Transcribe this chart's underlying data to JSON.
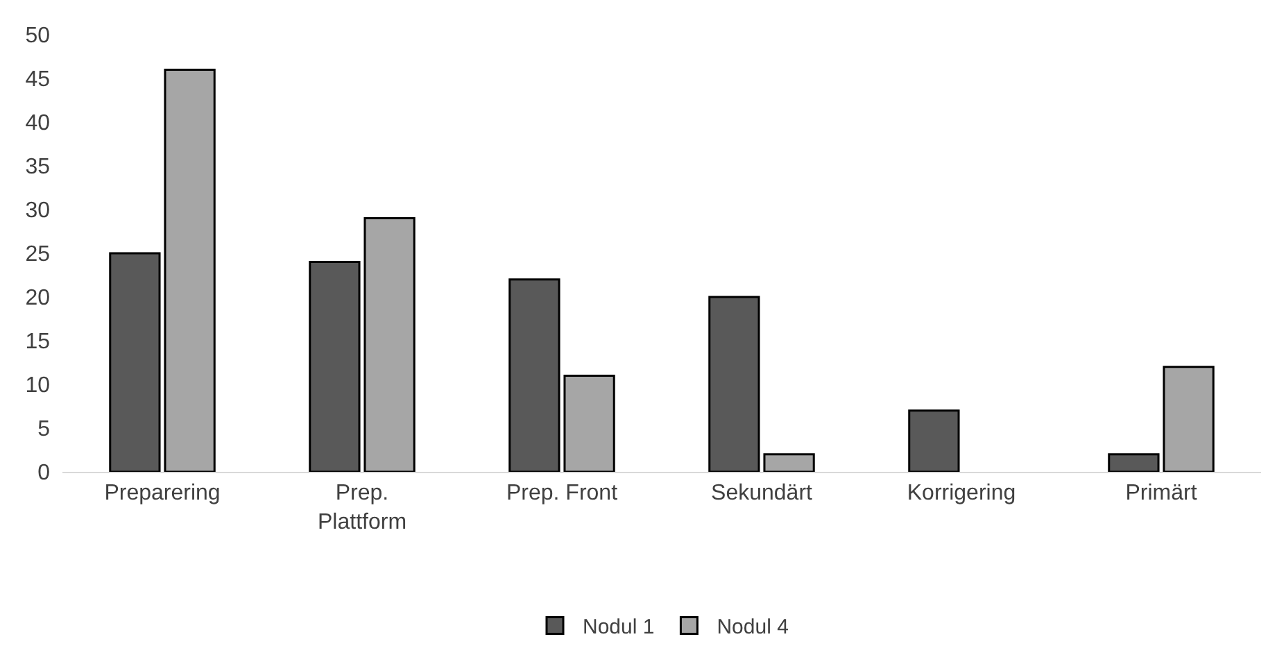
{
  "chart_data": {
    "type": "bar",
    "categories": [
      "Preparering",
      "Prep. Plattform",
      "Prep. Front",
      "Sekundärt",
      "Korrigering",
      "Primärt"
    ],
    "series": [
      {
        "name": "Nodul 1",
        "color": "#595959",
        "values": [
          25,
          24,
          22,
          20,
          7,
          2
        ]
      },
      {
        "name": "Nodul 4",
        "color": "#a6a6a6",
        "values": [
          46,
          29,
          11,
          2,
          null,
          12
        ]
      }
    ],
    "ylim": [
      0,
      50
    ],
    "yticks": [
      0,
      5,
      10,
      15,
      20,
      25,
      30,
      35,
      40,
      45,
      50
    ],
    "legend": "bottom"
  }
}
